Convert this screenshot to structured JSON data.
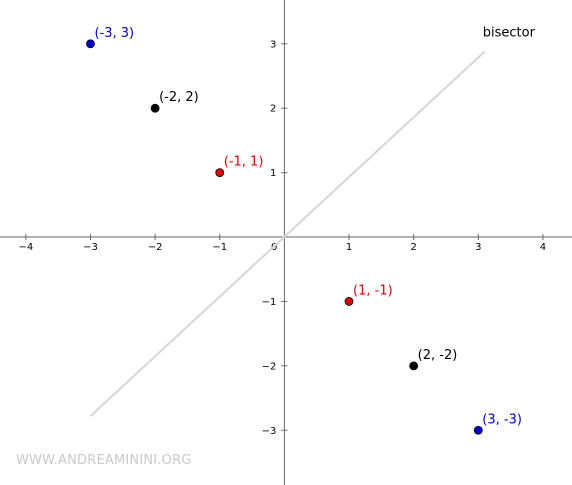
{
  "chart_data": {
    "type": "scatter",
    "title": "",
    "xlabel": "",
    "ylabel": "",
    "xlim": [
      -4.4,
      4.45
    ],
    "ylim": [
      -3.85,
      3.68
    ],
    "x_ticks": [
      -4,
      -3,
      -2,
      -1,
      1,
      2,
      3,
      4
    ],
    "y_ticks": [
      -3,
      -2,
      -1,
      1,
      2,
      3
    ],
    "origin_label": "0",
    "grid": false,
    "points": [
      {
        "x": -3,
        "y": 3,
        "label": "(-3, 3)",
        "color": "#0000cc"
      },
      {
        "x": -2,
        "y": 2,
        "label": "(-2, 2)",
        "color": "#000000"
      },
      {
        "x": -1,
        "y": 1,
        "label": "(-1, 1)",
        "color": "#dd0000"
      },
      {
        "x": 1,
        "y": -1,
        "label": "(1, -1)",
        "color": "#dd0000"
      },
      {
        "x": 2,
        "y": -2,
        "label": "(2, -2)",
        "color": "#000000"
      },
      {
        "x": 3,
        "y": -3,
        "label": "(3, -3)",
        "color": "#0000cc"
      }
    ],
    "bisector": {
      "label": "bisector",
      "x_start": -3,
      "y_start": -2.78,
      "x_end": 3.1,
      "y_end": 2.88,
      "color": "#d6d6d6"
    }
  },
  "watermark": "WWW.ANDREAMININI.ORG"
}
